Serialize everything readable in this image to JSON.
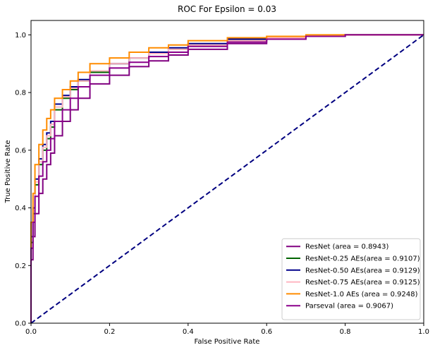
{
  "chart_data": {
    "type": "line",
    "title": "ROC For Epsilon = 0.03",
    "xlabel": "False Positive Rate",
    "ylabel": "True Positive Rate",
    "xlim": [
      0,
      1
    ],
    "ylim": [
      0,
      1.05
    ],
    "xticks": [
      "0.0",
      "0.2",
      "0.4",
      "0.6",
      "0.8",
      "1.0"
    ],
    "yticks": [
      "0.0",
      "0.2",
      "0.4",
      "0.6",
      "0.8",
      "1.0"
    ],
    "grid": false,
    "legend_position": "lower-right",
    "series": [
      {
        "name": "ResNet (area = 0.8943)",
        "color": "#800080",
        "x": [
          0,
          0,
          0.005,
          0.01,
          0.02,
          0.03,
          0.04,
          0.05,
          0.06,
          0.08,
          0.1,
          0.12,
          0.15,
          0.2,
          0.25,
          0.3,
          0.35,
          0.4,
          0.5,
          0.6,
          0.7,
          0.8,
          0.9,
          1.0
        ],
        "y": [
          0,
          0.12,
          0.22,
          0.3,
          0.38,
          0.45,
          0.5,
          0.55,
          0.59,
          0.65,
          0.7,
          0.74,
          0.78,
          0.83,
          0.86,
          0.89,
          0.91,
          0.93,
          0.95,
          0.97,
          0.985,
          0.995,
          1.0,
          1.0
        ]
      },
      {
        "name": "ResNet-0.25 AEs(area = 0.9107)",
        "color": "#006400",
        "x": [
          0,
          0,
          0.005,
          0.01,
          0.02,
          0.03,
          0.04,
          0.05,
          0.06,
          0.08,
          0.1,
          0.12,
          0.15,
          0.2,
          0.25,
          0.3,
          0.35,
          0.4,
          0.5,
          0.6,
          0.7,
          0.8,
          0.9,
          1.0
        ],
        "y": [
          0,
          0.15,
          0.28,
          0.38,
          0.48,
          0.55,
          0.6,
          0.64,
          0.68,
          0.74,
          0.78,
          0.81,
          0.84,
          0.87,
          0.9,
          0.92,
          0.935,
          0.95,
          0.965,
          0.98,
          0.99,
          0.995,
          1.0,
          1.0
        ]
      },
      {
        "name": "ResNet-0.50 AEs(area = 0.9129)",
        "color": "#00008b",
        "x": [
          0,
          0,
          0.005,
          0.01,
          0.02,
          0.03,
          0.04,
          0.05,
          0.06,
          0.08,
          0.1,
          0.12,
          0.15,
          0.2,
          0.25,
          0.3,
          0.35,
          0.4,
          0.5,
          0.6,
          0.7,
          0.8,
          0.9,
          1.0
        ],
        "y": [
          0,
          0.16,
          0.3,
          0.4,
          0.5,
          0.57,
          0.62,
          0.66,
          0.7,
          0.76,
          0.79,
          0.82,
          0.845,
          0.875,
          0.9,
          0.92,
          0.94,
          0.955,
          0.97,
          0.985,
          0.99,
          0.995,
          1.0,
          1.0
        ]
      },
      {
        "name": "ResNet-0.75 AEs(area = 0.9125)",
        "color": "#ffb6c1",
        "x": [
          0,
          0,
          0.005,
          0.01,
          0.02,
          0.03,
          0.04,
          0.05,
          0.06,
          0.08,
          0.1,
          0.12,
          0.15,
          0.2,
          0.25,
          0.3,
          0.35,
          0.4,
          0.5,
          0.6,
          0.7,
          0.8,
          0.9,
          1.0
        ],
        "y": [
          0,
          0.15,
          0.29,
          0.39,
          0.49,
          0.56,
          0.61,
          0.65,
          0.69,
          0.75,
          0.785,
          0.815,
          0.84,
          0.875,
          0.9,
          0.92,
          0.935,
          0.95,
          0.965,
          0.98,
          0.99,
          0.995,
          1.0,
          1.0
        ]
      },
      {
        "name": "ResNet-1.0 AEs (area = 0.9248)",
        "color": "#ff8c00",
        "x": [
          0,
          0,
          0.005,
          0.01,
          0.02,
          0.03,
          0.04,
          0.05,
          0.06,
          0.08,
          0.1,
          0.12,
          0.15,
          0.2,
          0.25,
          0.3,
          0.35,
          0.4,
          0.5,
          0.6,
          0.7,
          0.8,
          0.9,
          1.0
        ],
        "y": [
          0,
          0.2,
          0.35,
          0.45,
          0.55,
          0.62,
          0.67,
          0.71,
          0.74,
          0.78,
          0.81,
          0.84,
          0.87,
          0.9,
          0.92,
          0.94,
          0.955,
          0.965,
          0.98,
          0.99,
          0.995,
          1.0,
          1.0,
          1.0
        ]
      },
      {
        "name": "Parseval (area = 0.9067)",
        "color": "#8b008b",
        "x": [
          0,
          0,
          0.005,
          0.01,
          0.02,
          0.03,
          0.04,
          0.05,
          0.06,
          0.08,
          0.1,
          0.12,
          0.15,
          0.2,
          0.25,
          0.3,
          0.35,
          0.4,
          0.5,
          0.6,
          0.7,
          0.8,
          0.9,
          1.0
        ],
        "y": [
          0,
          0.14,
          0.26,
          0.35,
          0.44,
          0.51,
          0.56,
          0.6,
          0.64,
          0.7,
          0.74,
          0.78,
          0.82,
          0.86,
          0.885,
          0.905,
          0.925,
          0.94,
          0.96,
          0.975,
          0.985,
          0.995,
          1.0,
          1.0
        ]
      }
    ],
    "reference_line": {
      "color": "#000080",
      "style": "dashed",
      "x": [
        0,
        1
      ],
      "y": [
        0,
        1
      ]
    }
  }
}
